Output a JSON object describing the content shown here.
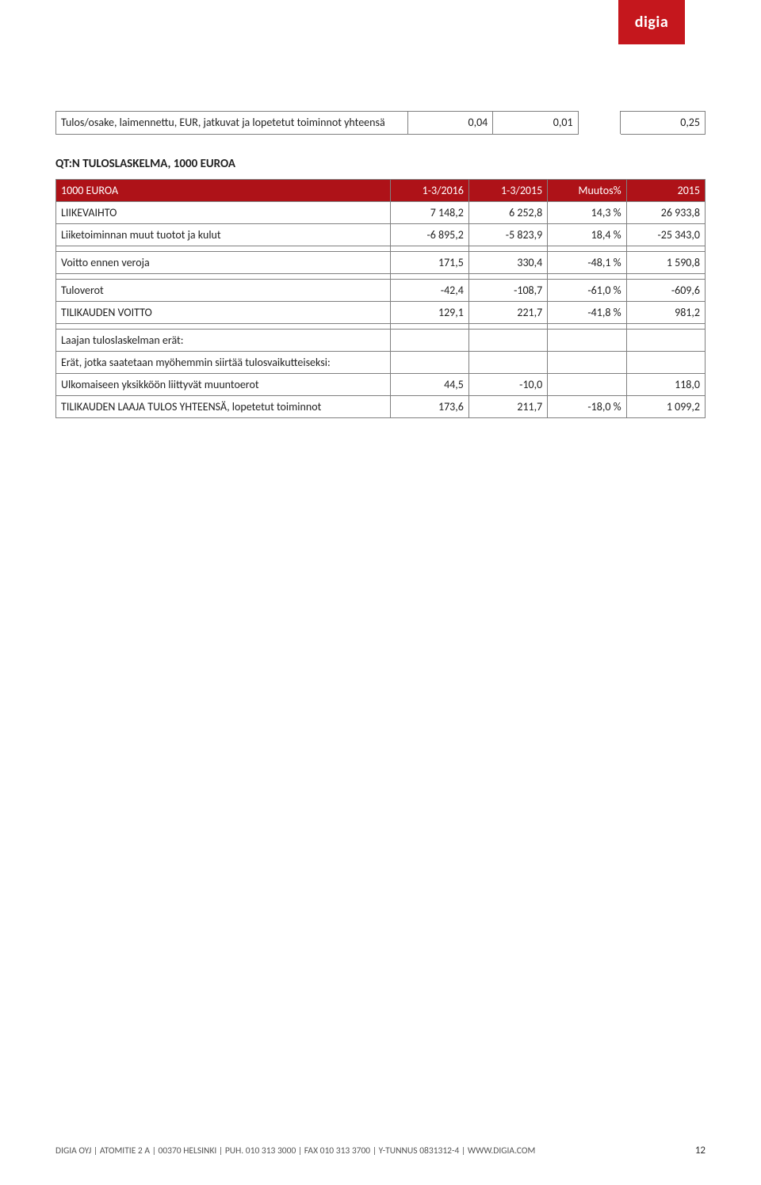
{
  "brand": {
    "logo_text": "digia",
    "logo_bg": "#c5171d"
  },
  "table1": {
    "row1_label": "Tulos/osake, laimennettu, EUR, jatkuvat ja lopetetut toiminnot yhteensä",
    "row1_c1": "0,04",
    "row1_c2": "0,01",
    "row1_c3": "0,25"
  },
  "heading": "QT:N TULOSLASKELMA, 1000 EUROA",
  "table2": {
    "header": {
      "h0": "1000 EUROA",
      "h1": "1-3/2016",
      "h2": "1-3/2015",
      "h3": "Muutos%",
      "h4": "2015"
    },
    "rows": [
      {
        "label": "LIIKEVAIHTO",
        "c1": "7 148,2",
        "c2": "6 252,8",
        "c3": "14,3 %",
        "c4": "26 933,8"
      },
      {
        "label": "Liiketoiminnan muut tuotot ja kulut",
        "c1": "-6 895,2",
        "c2": "-5 823,9",
        "c3": "18,4 %",
        "c4": "-25 343,0"
      }
    ],
    "voitto": {
      "label": "Voitto ennen veroja",
      "c1": "171,5",
      "c2": "330,4",
      "c3": "-48,1 %",
      "c4": "1 590,8"
    },
    "tuloverot": {
      "label": "Tuloverot",
      "c1": "-42,4",
      "c2": "-108,7",
      "c3": "-61,0 %",
      "c4": "-609,6"
    },
    "tilikauden": {
      "label": "TILIKAUDEN VOITTO",
      "c1": "129,1",
      "c2": "221,7",
      "c3": "-41,8 %",
      "c4": "981,2"
    },
    "laajan": "Laajan tuloslaskelman erät:",
    "erat": "Erät, jotka saatetaan myöhemmin siirtää tulosvaikutteiseksi:",
    "ulkomaiseen": {
      "label": "Ulkomaiseen yksikköön liittyvät muuntoerot",
      "c1": "44,5",
      "c2": "-10,0",
      "c3": "",
      "c4": "118,0"
    },
    "laaja_yht": {
      "label": "TILIKAUDEN LAAJA TULOS YHTEENSÄ, lopetetut toiminnot",
      "c1": "173,6",
      "c2": "211,7",
      "c3": "-18,0 %",
      "c4": "1 099,2"
    }
  },
  "footer": {
    "text": "DIGIA OYJ | ATOMITIE 2 A | 00370 HELSINKI | PUH. 010 313 3000 | FAX 010 313 3700 | Y-TUNNUS 0831312-4 | WWW.DIGIA.COM",
    "page": "12"
  }
}
